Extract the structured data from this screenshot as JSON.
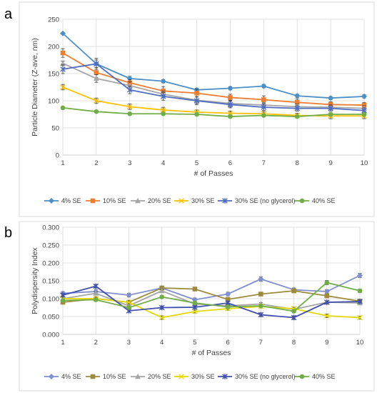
{
  "panel_labels": [
    "a",
    "b"
  ],
  "chart_data": [
    {
      "type": "line",
      "panel": "a",
      "title": "",
      "xlabel": "# of Passes",
      "ylabel": "Particle Diameter (Z-ave, nm)",
      "x": [
        1,
        2,
        3,
        4,
        5,
        6,
        7,
        8,
        9,
        10
      ],
      "xlim": [
        1,
        10
      ],
      "ylim": [
        0,
        250
      ],
      "yticks": [
        0,
        50,
        100,
        150,
        200,
        250
      ],
      "ytick_labels": [
        "0",
        "50",
        "100",
        "150",
        "200",
        "250"
      ],
      "xtick_labels": [
        "1",
        "2",
        "3",
        "4",
        "5",
        "6",
        "7",
        "8",
        "9",
        "10"
      ],
      "grid": true,
      "legend_position": "bottom",
      "series": [
        {
          "name": "4% SE",
          "color": "#4a8fc7",
          "marker": "diamond",
          "values": [
            224,
            168,
            141,
            136,
            120,
            123,
            127,
            109,
            105,
            108
          ],
          "errors": [
            0,
            7,
            4,
            3,
            3,
            3,
            3,
            3,
            3,
            3
          ]
        },
        {
          "name": "10% SE",
          "color": "#ed7d31",
          "marker": "square",
          "values": [
            188,
            152,
            133,
            118,
            114,
            106,
            102,
            97,
            93,
            92
          ],
          "errors": [
            8,
            9,
            6,
            8,
            7,
            6,
            7,
            6,
            5,
            5
          ]
        },
        {
          "name": "20% SE",
          "color": "#a5a5a5",
          "marker": "triangle",
          "values": [
            169,
            141,
            128,
            112,
            101,
            95,
            92,
            89,
            88,
            86
          ],
          "errors": [
            4,
            7,
            7,
            6,
            6,
            6,
            5,
            5,
            5,
            5
          ]
        },
        {
          "name": "30% SE",
          "color": "#ffc000",
          "marker": "x",
          "values": [
            125,
            100,
            89,
            83,
            79,
            77,
            76,
            73,
            72,
            72
          ],
          "errors": [
            5,
            5,
            5,
            5,
            4,
            4,
            4,
            4,
            5,
            5
          ]
        },
        {
          "name": "30% SE (no glycerol)",
          "color": "#4f6cc3",
          "marker": "star",
          "values": [
            158,
            168,
            120,
            108,
            100,
            93,
            88,
            86,
            86,
            82
          ],
          "errors": [
            8,
            10,
            7,
            7,
            7,
            6,
            6,
            5,
            5,
            5
          ]
        },
        {
          "name": "40% SE",
          "color": "#70ad47",
          "marker": "circle",
          "values": [
            87,
            80,
            76,
            76,
            75,
            71,
            73,
            71,
            75,
            75
          ],
          "errors": [
            2,
            2,
            2,
            2,
            2,
            2,
            2,
            2,
            3,
            3
          ]
        }
      ]
    },
    {
      "type": "line",
      "panel": "b",
      "title": "",
      "xlabel": "# of Passes",
      "ylabel": "Polydispersity Index",
      "x": [
        1,
        2,
        3,
        4,
        5,
        6,
        7,
        8,
        9,
        10
      ],
      "xlim": [
        1,
        10
      ],
      "ylim": [
        0,
        0.3
      ],
      "yticks": [
        0,
        0.05,
        0.1,
        0.15,
        0.2,
        0.25,
        0.3
      ],
      "ytick_labels": [
        "0.000",
        "0.050",
        "0.100",
        "0.150",
        "0.200",
        "0.250",
        "0.300"
      ],
      "xtick_labels": [
        "1",
        "2",
        "3",
        "4",
        "5",
        "6",
        "7",
        "8",
        "9",
        "10"
      ],
      "grid": true,
      "legend_position": "bottom",
      "series": [
        {
          "name": "4% SE",
          "color": "#7f8fd1",
          "marker": "diamond",
          "values": [
            0.115,
            0.12,
            0.11,
            0.13,
            0.097,
            0.113,
            0.155,
            0.125,
            0.12,
            0.165
          ],
          "errors": [
            0.005,
            0.005,
            0.005,
            0.005,
            0.005,
            0.005,
            0.006,
            0.005,
            0.005,
            0.006
          ]
        },
        {
          "name": "10% SE",
          "color": "#9e8a3c",
          "marker": "square",
          "values": [
            0.09,
            0.1,
            0.09,
            0.13,
            0.127,
            0.098,
            0.113,
            0.122,
            0.108,
            0.093
          ],
          "errors": [
            0.004,
            0.004,
            0.004,
            0.004,
            0.004,
            0.004,
            0.004,
            0.004,
            0.004,
            0.004
          ]
        },
        {
          "name": "20% SE",
          "color": "#a5a5a5",
          "marker": "triangle",
          "values": [
            0.1,
            0.115,
            0.08,
            0.122,
            0.085,
            0.08,
            0.085,
            0.07,
            0.09,
            0.088
          ],
          "errors": [
            0.004,
            0.004,
            0.004,
            0.004,
            0.004,
            0.004,
            0.004,
            0.004,
            0.004,
            0.004
          ]
        },
        {
          "name": "30% SE",
          "color": "#e5d800",
          "marker": "x",
          "values": [
            0.1,
            0.1,
            0.09,
            0.047,
            0.064,
            0.072,
            0.078,
            0.072,
            0.052,
            0.047
          ],
          "errors": [
            0.004,
            0.004,
            0.004,
            0.005,
            0.004,
            0.004,
            0.004,
            0.004,
            0.005,
            0.004
          ]
        },
        {
          "name": "30% SE (no glycerol)",
          "color": "#3f4fae",
          "marker": "star",
          "values": [
            0.11,
            0.135,
            0.066,
            0.075,
            0.076,
            0.088,
            0.055,
            0.047,
            0.09,
            0.092
          ],
          "errors": [
            0.004,
            0.005,
            0.004,
            0.004,
            0.004,
            0.004,
            0.005,
            0.005,
            0.004,
            0.004
          ]
        },
        {
          "name": "40% SE",
          "color": "#70ad47",
          "marker": "circle",
          "values": [
            0.095,
            0.097,
            0.075,
            0.105,
            0.088,
            0.077,
            0.08,
            0.065,
            0.145,
            0.122
          ],
          "errors": [
            0.004,
            0.004,
            0.004,
            0.004,
            0.004,
            0.004,
            0.004,
            0.004,
            0.006,
            0.005
          ]
        }
      ]
    }
  ]
}
